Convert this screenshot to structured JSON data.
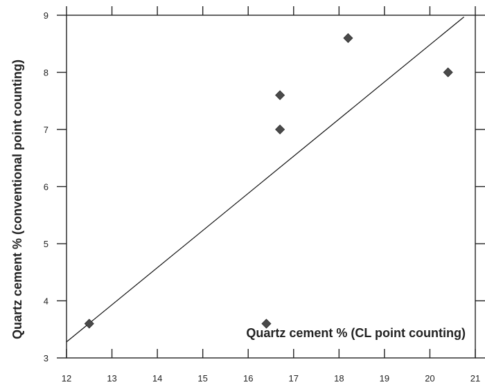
{
  "chart_data": {
    "type": "scatter",
    "title": "",
    "xlabel": "Quartz cement % (CL point counting)",
    "ylabel": "Quartz cement % (conventional point counting)",
    "xlim": [
      12,
      21
    ],
    "ylim": [
      3,
      9
    ],
    "xticks": [
      "12",
      "13",
      "14",
      "15",
      "16",
      "17",
      "18",
      "19",
      "20",
      "21"
    ],
    "yticks": [
      "3",
      "4",
      "5",
      "6",
      "7",
      "8",
      "9"
    ],
    "grid": false,
    "marker": "diamond",
    "marker_color": "#4a4a4a",
    "points": [
      {
        "x": 12.5,
        "y": 3.6
      },
      {
        "x": 16.4,
        "y": 3.6
      },
      {
        "x": 16.7,
        "y": 7.0
      },
      {
        "x": 16.7,
        "y": 7.6
      },
      {
        "x": 18.2,
        "y": 8.6
      },
      {
        "x": 20.4,
        "y": 8.0
      }
    ],
    "trend_line": {
      "x": [
        12,
        20.75
      ],
      "y": [
        3.28,
        8.97
      ]
    }
  }
}
